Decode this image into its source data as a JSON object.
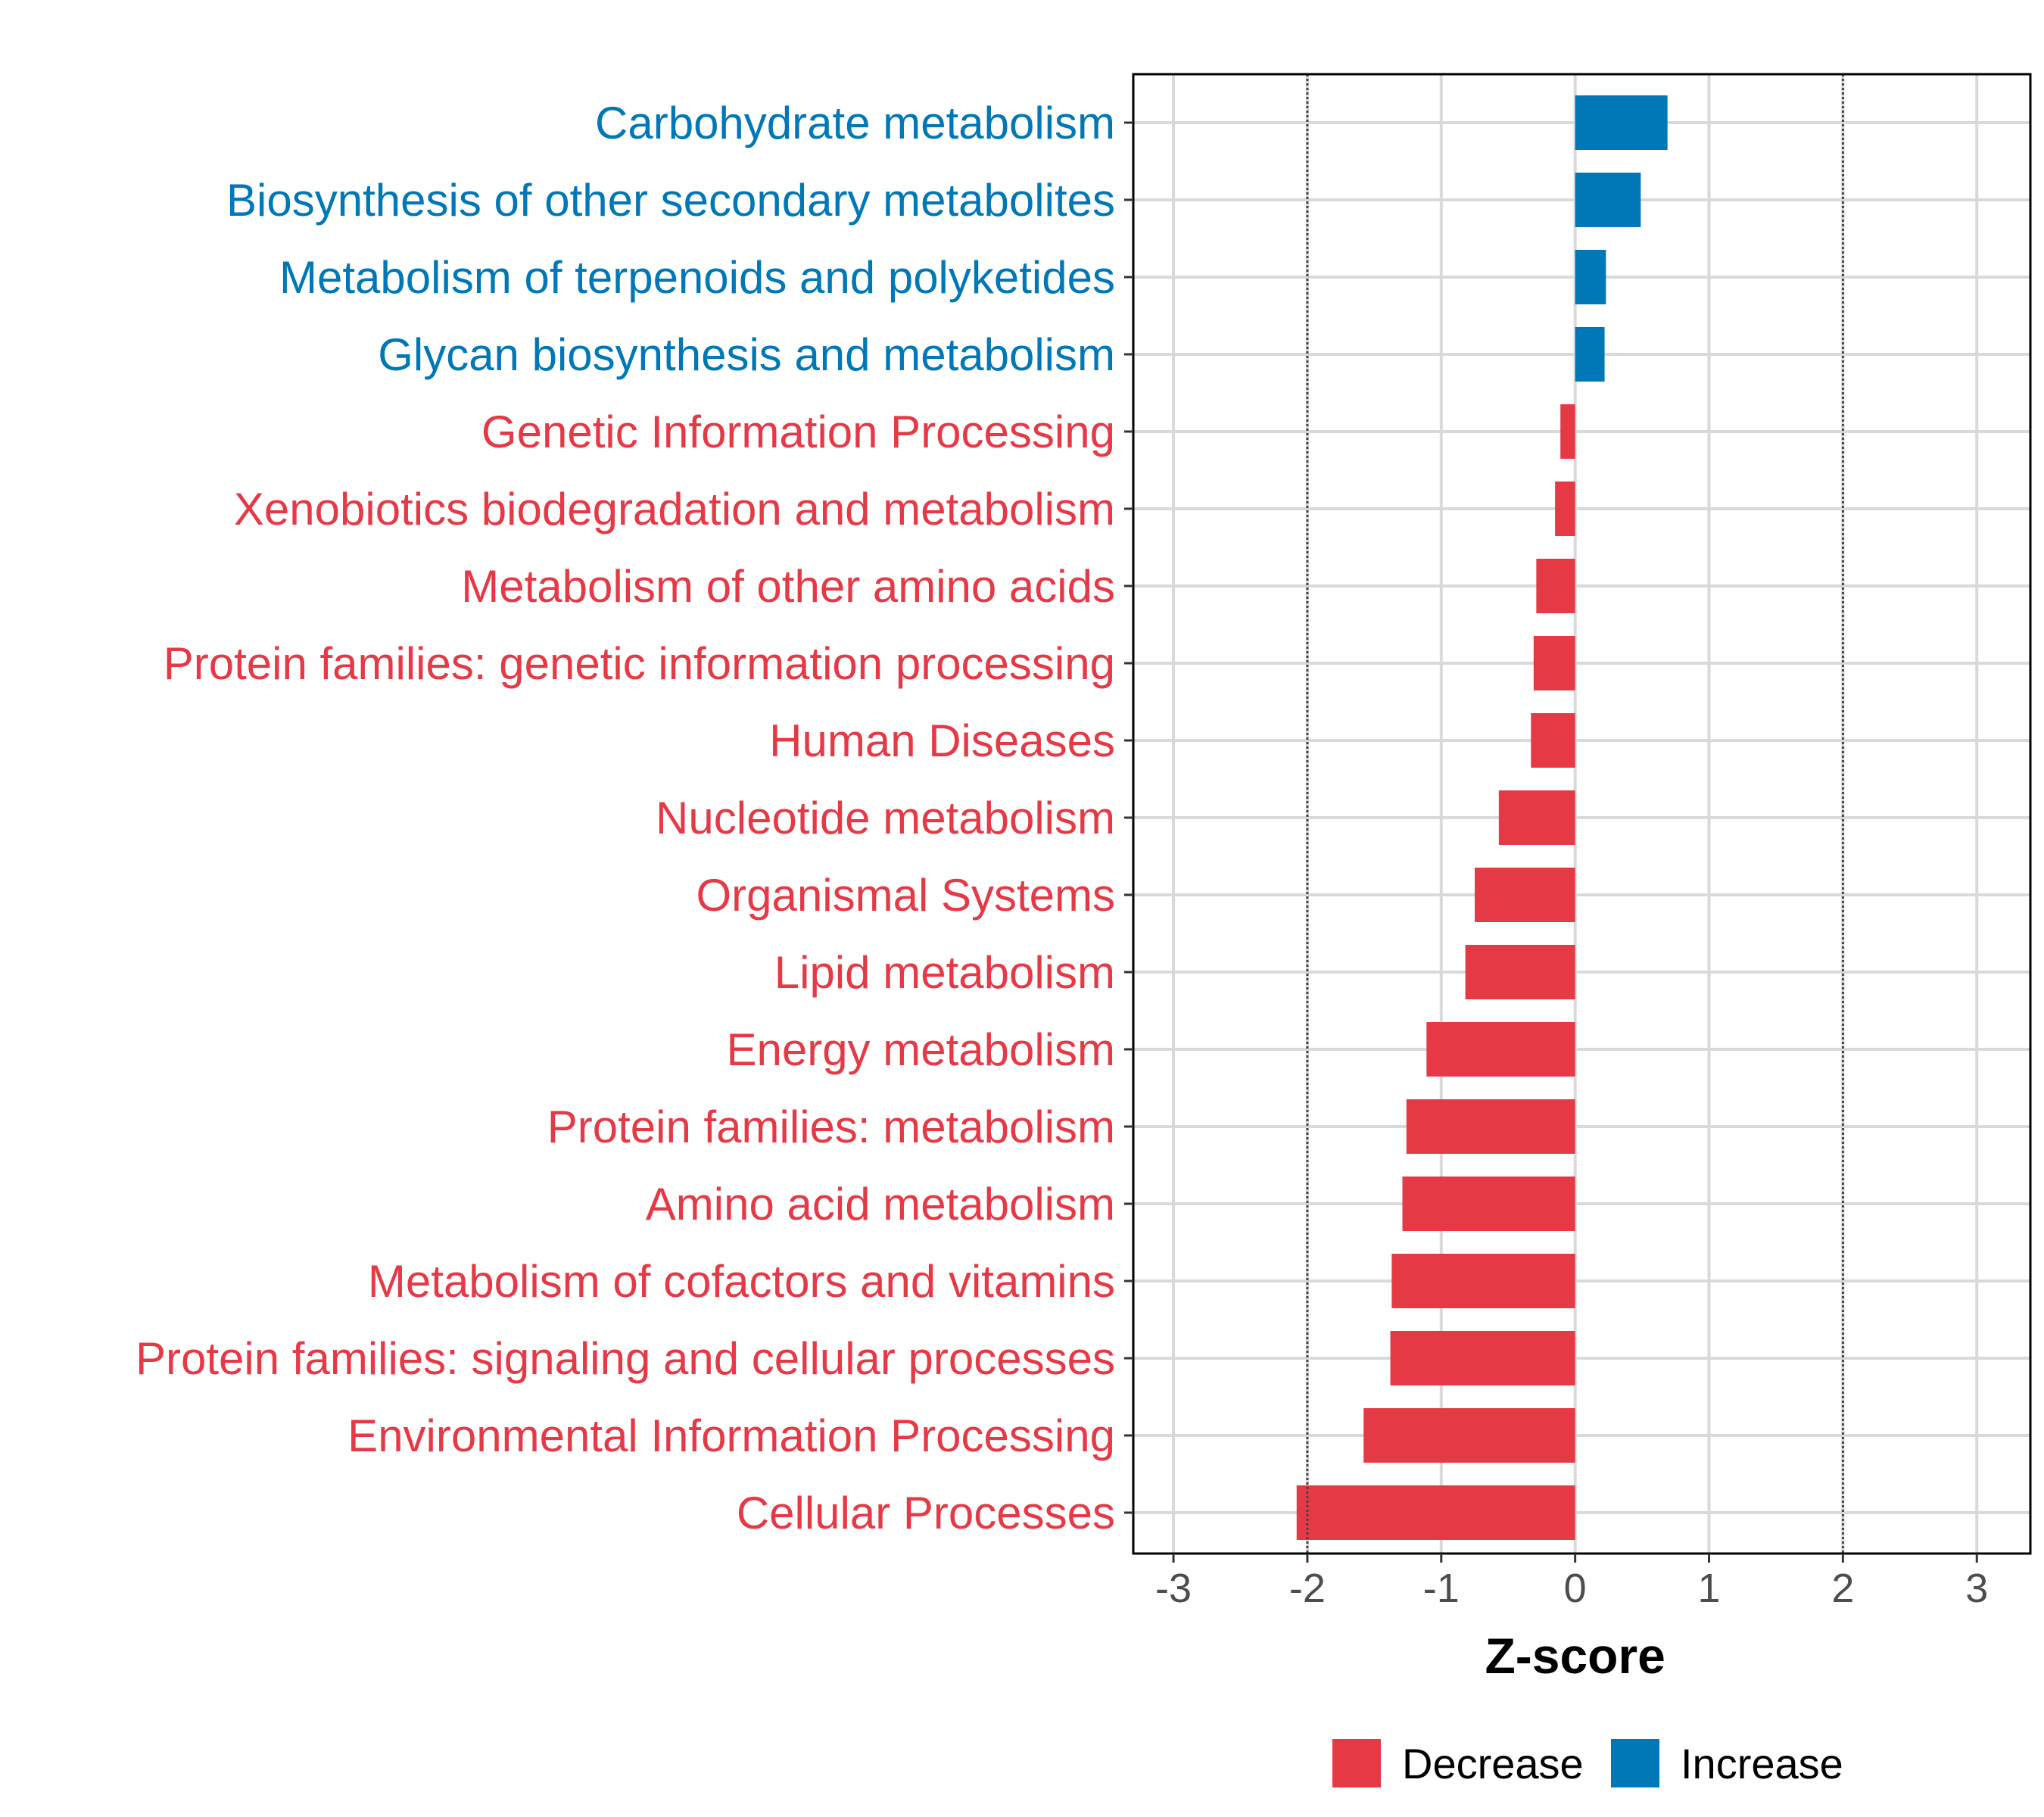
{
  "chart_data": {
    "type": "bar",
    "orientation": "horizontal",
    "title": "",
    "xlabel": "Z-score",
    "ylabel": "",
    "xlim": [
      -3.3,
      3.4
    ],
    "xticks": [
      -3,
      -2,
      -1,
      0,
      1,
      2,
      3
    ],
    "xtick_labels": [
      "-3",
      "-2",
      "-1",
      "0",
      "1",
      "2",
      "3"
    ],
    "reference_lines": [
      -2,
      2
    ],
    "grid": true,
    "legend_position": "bottom",
    "categories": [
      "Carbohydrate metabolism",
      "Biosynthesis of other secondary metabolites",
      "Metabolism of terpenoids and polyketides",
      "Glycan biosynthesis and metabolism",
      "Genetic Information Processing",
      "Xenobiotics biodegradation and metabolism",
      "Metabolism of other amino acids",
      "Protein families: genetic information processing",
      "Human Diseases",
      "Nucleotide metabolism",
      "Organismal Systems",
      "Lipid metabolism",
      "Energy metabolism",
      "Protein families: metabolism",
      "Amino acid metabolism",
      "Metabolism of cofactors and vitamins",
      "Protein families: signaling and cellular processes",
      "Environmental Information Processing",
      "Cellular Processes"
    ],
    "values": [
      0.69,
      0.49,
      0.23,
      0.22,
      -0.11,
      -0.15,
      -0.29,
      -0.31,
      -0.33,
      -0.57,
      -0.75,
      -0.82,
      -1.11,
      -1.26,
      -1.29,
      -1.37,
      -1.38,
      -1.58,
      -2.08
    ],
    "groups": [
      "Increase",
      "Increase",
      "Increase",
      "Increase",
      "Decrease",
      "Decrease",
      "Decrease",
      "Decrease",
      "Decrease",
      "Decrease",
      "Decrease",
      "Decrease",
      "Decrease",
      "Decrease",
      "Decrease",
      "Decrease",
      "Decrease",
      "Decrease",
      "Decrease"
    ],
    "legend": [
      {
        "name": "Decrease",
        "color": "#e63946"
      },
      {
        "name": "Increase",
        "color": "#0077b6"
      }
    ]
  }
}
